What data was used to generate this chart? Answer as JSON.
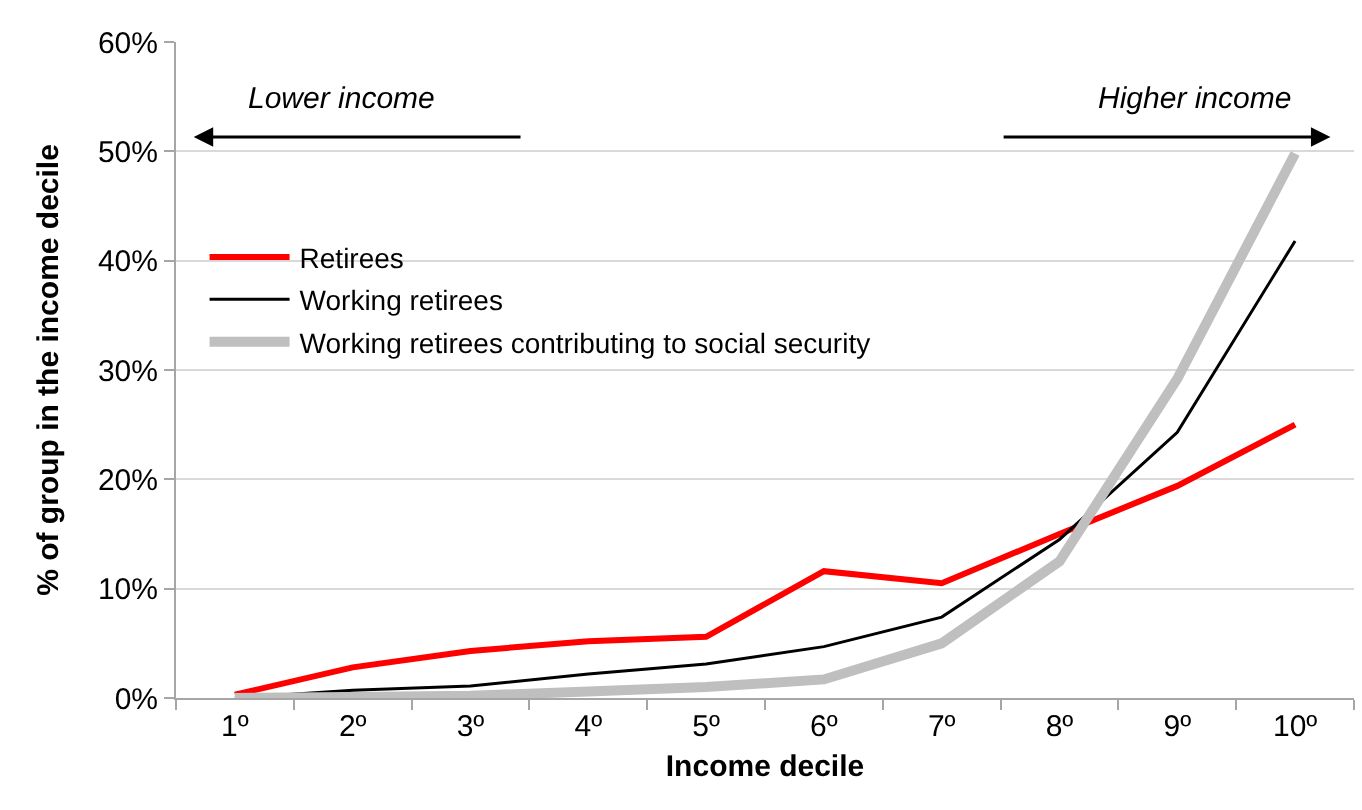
{
  "chart_data": {
    "type": "line",
    "xlabel": "Income decile",
    "ylabel": "% of group in the income decile",
    "categories": [
      "1º",
      "2º",
      "3º",
      "4º",
      "5º",
      "6º",
      "7º",
      "8º",
      "9º",
      "10º"
    ],
    "series": [
      {
        "name": "Retirees",
        "color": "#ff0000",
        "values": [
          0.3,
          2.8,
          4.3,
          5.2,
          5.6,
          11.6,
          10.5,
          15.0,
          19.4,
          25.0
        ]
      },
      {
        "name": "Working retirees",
        "color": "#000000",
        "values": [
          0.0,
          0.7,
          1.1,
          2.2,
          3.1,
          4.7,
          7.4,
          14.5,
          24.3,
          41.8
        ]
      },
      {
        "name": "Working retirees contributing to social security",
        "color": "#bfbfbf",
        "values": [
          0.0,
          0.1,
          0.2,
          0.6,
          1.0,
          1.7,
          5.0,
          12.5,
          29.2,
          49.8
        ]
      }
    ],
    "ylim": [
      0,
      60
    ],
    "yticks": [
      {
        "value": 0,
        "label": "0%"
      },
      {
        "value": 10,
        "label": "10%"
      },
      {
        "value": 20,
        "label": "20%"
      },
      {
        "value": 30,
        "label": "30%"
      },
      {
        "value": 40,
        "label": "40%"
      },
      {
        "value": 50,
        "label": "50%"
      },
      {
        "value": 60,
        "label": "60%"
      }
    ],
    "annotations": [
      "Lower income",
      "Higher income"
    ],
    "grid": "y",
    "legend": "left",
    "marker": "none",
    "line_style": "solid"
  }
}
